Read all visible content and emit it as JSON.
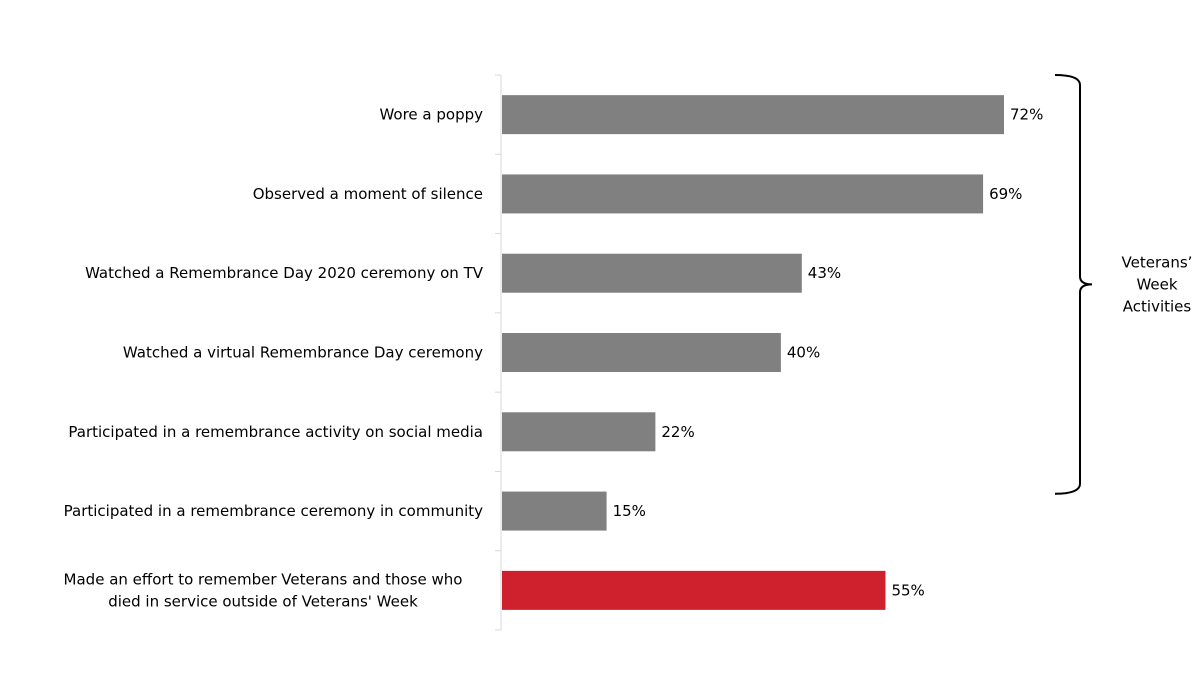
{
  "chart_data": {
    "type": "bar",
    "orientation": "horizontal",
    "categories": [
      [
        "Wore a poppy"
      ],
      [
        "Observed a moment of silence"
      ],
      [
        "Watched a Remembrance Day 2020 ceremony on TV"
      ],
      [
        "Watched a virtual Remembrance Day ceremony"
      ],
      [
        "Participated in a remembrance activity on social media"
      ],
      [
        "Participated in a remembrance ceremony in community"
      ],
      [
        "Made an effort to remember Veterans and those who",
        "died in service outside of Veterans' Week"
      ]
    ],
    "values": [
      72,
      69,
      43,
      40,
      22,
      15,
      55
    ],
    "data_labels": [
      "72%",
      "69%",
      "43%",
      "40%",
      "22%",
      "15%",
      "55%"
    ],
    "unit": "%",
    "xlim": [
      0,
      100
    ],
    "grid": false,
    "bar_colors": [
      "#808080",
      "#808080",
      "#808080",
      "#808080",
      "#808080",
      "#808080",
      "#cf202e"
    ],
    "bracket": {
      "label_lines": [
        "Veterans’",
        "Week",
        "Activities"
      ],
      "spans_categories": [
        0,
        5
      ]
    }
  }
}
